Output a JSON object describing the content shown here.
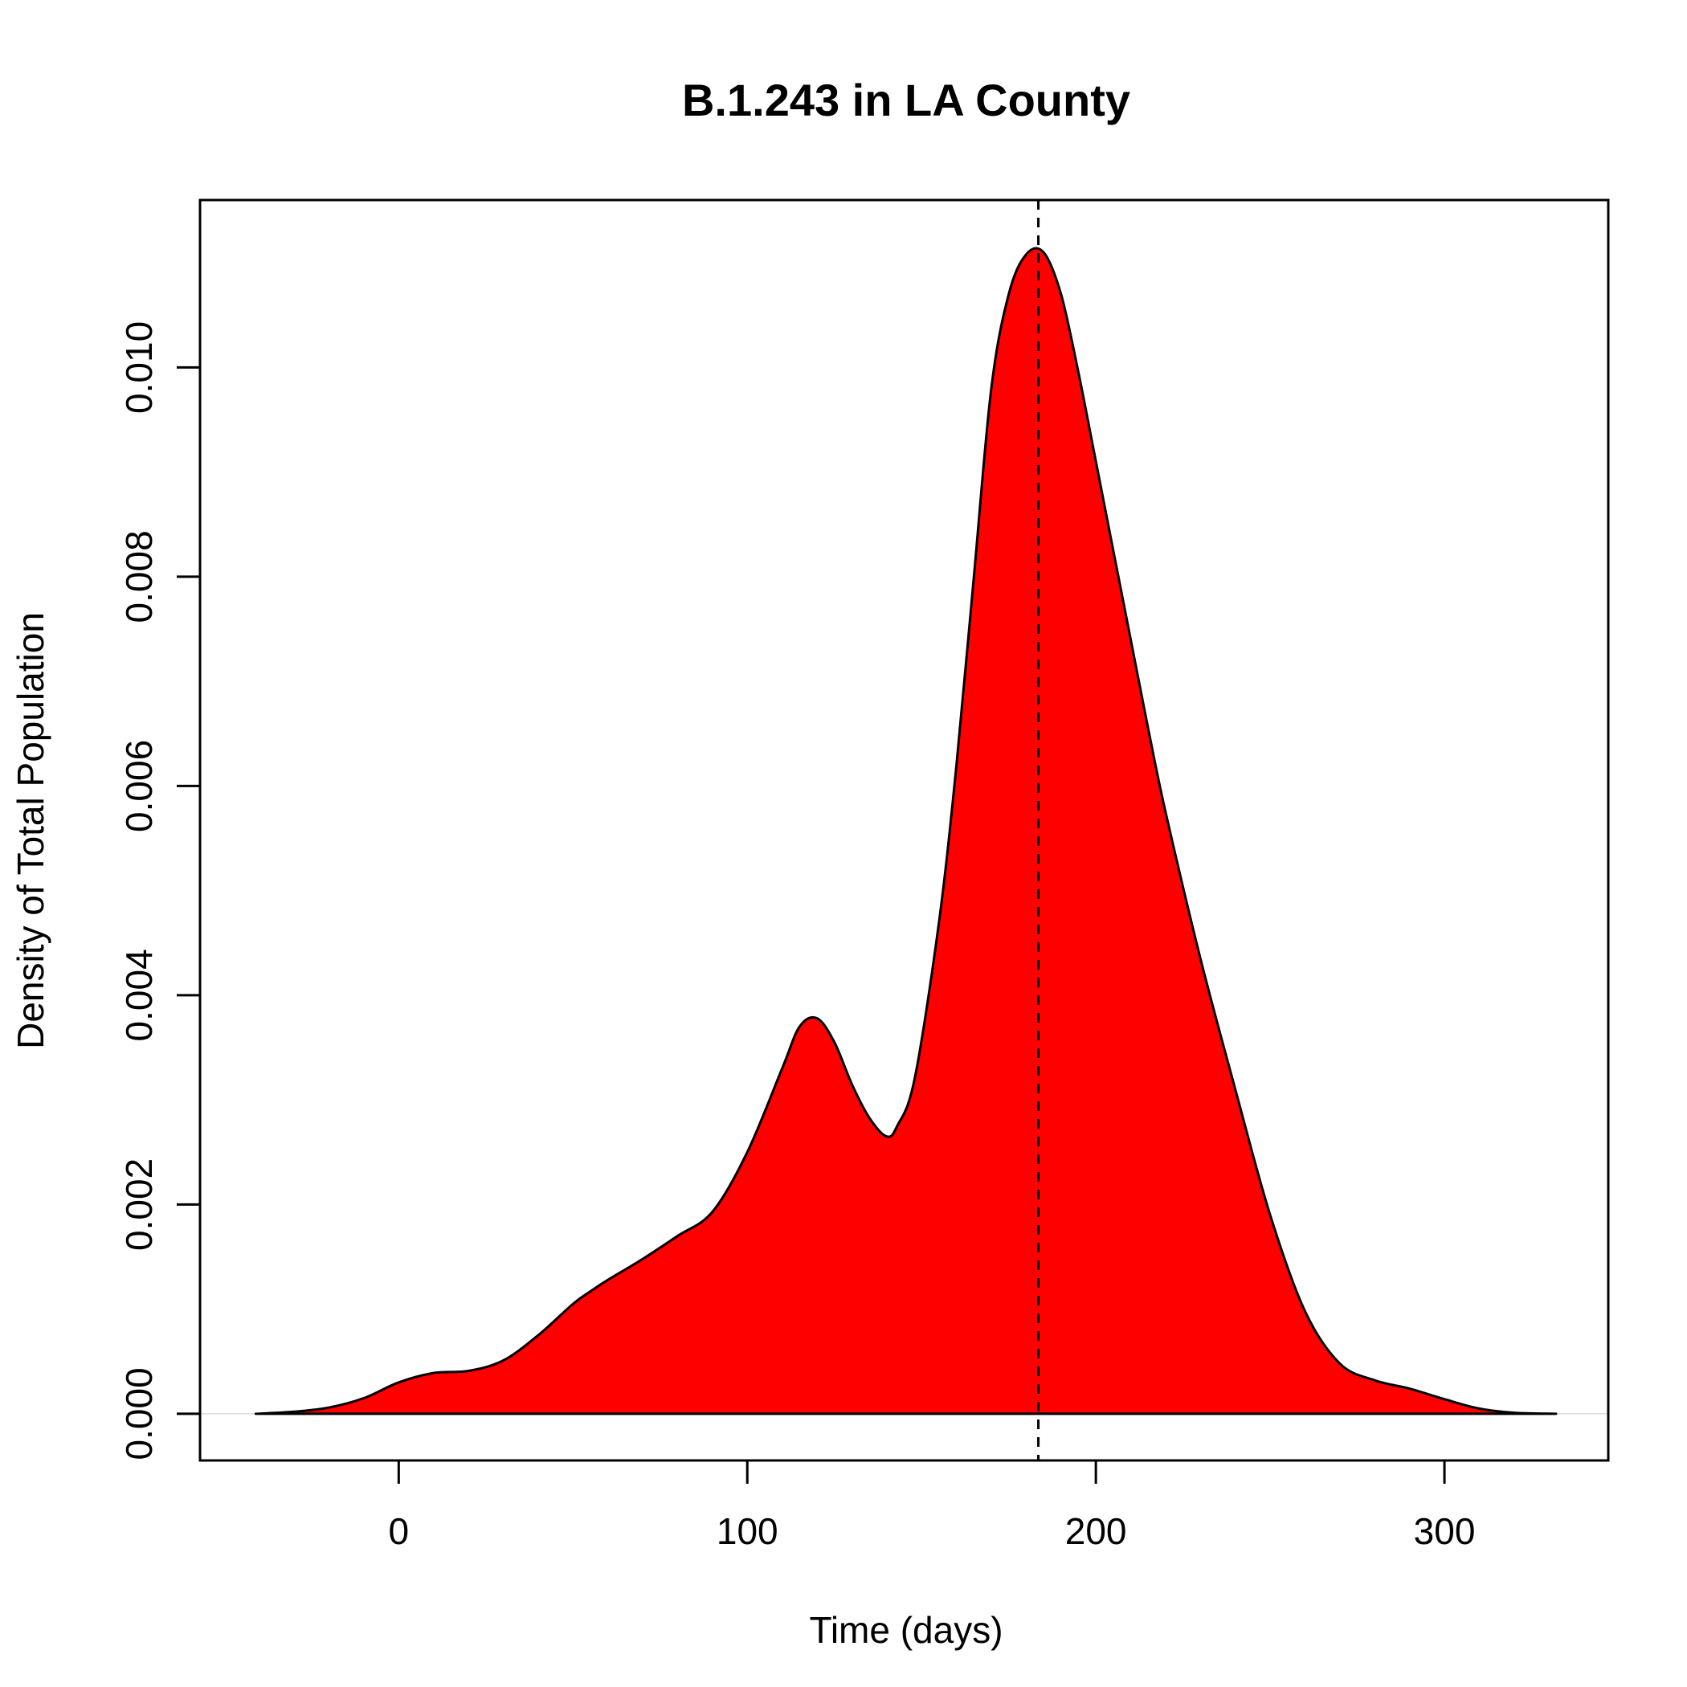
{
  "chart_data": {
    "type": "area",
    "title": "B.1.243 in LA County",
    "xlabel": "Time (days)",
    "ylabel": "Density of Total Population",
    "xlim": [
      -57,
      347
    ],
    "ylim": [
      -0.000446,
      0.0116
    ],
    "x_ticks": [
      0,
      100,
      200,
      300
    ],
    "x_tick_labels": [
      "0",
      "100",
      "200",
      "300"
    ],
    "y_ticks": [
      0.0,
      0.002,
      0.004,
      0.006,
      0.008,
      0.01
    ],
    "y_tick_labels": [
      "0.000",
      "0.002",
      "0.004",
      "0.006",
      "0.008",
      "0.010"
    ],
    "fill_color": "#ff0000",
    "line_color": "#000000",
    "vline_x": 183.5,
    "grid": false,
    "series": [
      {
        "x": [
          -41,
          -30,
          -20,
          -10,
          0,
          10,
          20,
          30,
          40,
          50,
          55,
          60,
          70,
          80,
          90,
          100,
          110,
          115,
          120,
          125,
          130,
          135,
          140,
          143,
          148,
          155,
          160,
          165,
          170,
          175,
          180,
          185,
          190,
          195,
          200,
          205,
          210,
          215,
          220,
          230,
          240,
          250,
          260,
          270,
          280,
          290,
          300,
          310,
          320,
          332
        ],
        "y": [
          0.0,
          2e-05,
          6e-05,
          0.00015,
          0.0003,
          0.00039,
          0.00041,
          0.00051,
          0.00075,
          0.00105,
          0.00117,
          0.00128,
          0.00148,
          0.0017,
          0.00193,
          0.0025,
          0.0033,
          0.0037,
          0.00378,
          0.00355,
          0.00315,
          0.00283,
          0.00265,
          0.00275,
          0.0032,
          0.0047,
          0.0062,
          0.008,
          0.0098,
          0.0107,
          0.01108,
          0.0111,
          0.0107,
          0.00995,
          0.0091,
          0.00825,
          0.0074,
          0.00655,
          0.00575,
          0.00435,
          0.0031,
          0.0019,
          0.00098,
          0.00048,
          0.00032,
          0.00024,
          0.00014,
          5e-05,
          1e-05,
          0.0
        ]
      }
    ]
  }
}
